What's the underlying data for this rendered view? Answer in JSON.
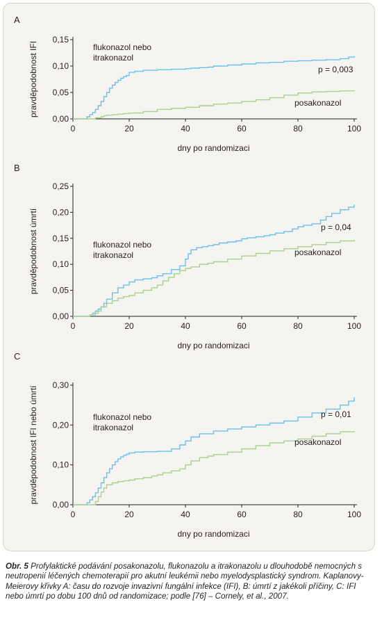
{
  "colors": {
    "fluconazole": "#67c1ef",
    "posaconazole": "#a5d28c",
    "axis": "#231f20",
    "panel_bg": "#f6f4f0"
  },
  "chart_data": [
    {
      "type": "line",
      "panel": "A",
      "xlabel": "dny po randomizaci",
      "ylabel": "pravděpodobnost IFI",
      "xlim": [
        0,
        100
      ],
      "ylim": [
        0,
        0.15
      ],
      "xticks": [
        "0",
        "20",
        "40",
        "60",
        "80",
        "100"
      ],
      "yticks": [
        "0,00",
        "0,05",
        "0,10",
        "0,15"
      ],
      "annotation": "p = 0,003",
      "series": [
        {
          "name": "flukonazol nebo itrakonazol",
          "label_lines": [
            "flukonazol nebo",
            "itrakonazol"
          ],
          "color_key": "fluconazole",
          "x": [
            0,
            4,
            5,
            6,
            7,
            8,
            9,
            10,
            11,
            12,
            13,
            14,
            15,
            16,
            17,
            18,
            19,
            20,
            22,
            25,
            30,
            35,
            40,
            42,
            45,
            48,
            50,
            55,
            60,
            65,
            70,
            75,
            80,
            85,
            90,
            95,
            98,
            100
          ],
          "y": [
            0,
            0,
            0.004,
            0.008,
            0.012,
            0.018,
            0.025,
            0.033,
            0.042,
            0.05,
            0.058,
            0.064,
            0.069,
            0.073,
            0.077,
            0.08,
            0.082,
            0.088,
            0.09,
            0.092,
            0.093,
            0.094,
            0.095,
            0.096,
            0.097,
            0.098,
            0.1,
            0.102,
            0.104,
            0.106,
            0.107,
            0.109,
            0.11,
            0.111,
            0.112,
            0.114,
            0.117,
            0.119
          ]
        },
        {
          "name": "posakonazol",
          "label_lines": [
            "posakonazol"
          ],
          "color_key": "posaconazole",
          "x": [
            0,
            5,
            8,
            10,
            11,
            12,
            14,
            16,
            18,
            20,
            25,
            30,
            35,
            40,
            45,
            50,
            55,
            60,
            65,
            70,
            75,
            80,
            85,
            90,
            95,
            100
          ],
          "y": [
            0,
            0,
            0.002,
            0.004,
            0.006,
            0.007,
            0.008,
            0.009,
            0.01,
            0.011,
            0.014,
            0.018,
            0.02,
            0.022,
            0.025,
            0.028,
            0.03,
            0.033,
            0.036,
            0.04,
            0.045,
            0.049,
            0.051,
            0.052,
            0.053,
            0.054
          ]
        }
      ]
    },
    {
      "type": "line",
      "panel": "B",
      "xlabel": "dny po randomizaci",
      "ylabel": "pravděpodobnost úmrtí",
      "xlim": [
        0,
        100
      ],
      "ylim": [
        0,
        0.25
      ],
      "xticks": [
        "0",
        "20",
        "40",
        "60",
        "80",
        "100"
      ],
      "yticks": [
        "0,00",
        "0,05",
        "0,10",
        "0,15",
        "0,20",
        "0,25"
      ],
      "annotation": "p = 0,04",
      "series": [
        {
          "name": "flukonazol nebo itrakonazol",
          "label_lines": [
            "flukonazol nebo",
            "itrakonazol"
          ],
          "color_key": "fluconazole",
          "x": [
            0,
            5,
            6,
            7,
            8,
            9,
            10,
            11,
            12,
            14,
            16,
            18,
            20,
            22,
            25,
            28,
            30,
            32,
            35,
            38,
            40,
            41,
            42,
            44,
            46,
            48,
            50,
            52,
            55,
            58,
            60,
            62,
            65,
            68,
            70,
            72,
            75,
            78,
            80,
            82,
            85,
            88,
            90,
            92,
            95,
            98,
            100
          ],
          "y": [
            0,
            0,
            0.003,
            0.006,
            0.01,
            0.014,
            0.018,
            0.025,
            0.033,
            0.045,
            0.055,
            0.06,
            0.066,
            0.07,
            0.072,
            0.074,
            0.078,
            0.082,
            0.09,
            0.097,
            0.11,
            0.12,
            0.128,
            0.132,
            0.134,
            0.136,
            0.138,
            0.141,
            0.143,
            0.145,
            0.149,
            0.151,
            0.153,
            0.155,
            0.157,
            0.16,
            0.163,
            0.168,
            0.172,
            0.175,
            0.178,
            0.185,
            0.192,
            0.198,
            0.205,
            0.21,
            0.215
          ]
        },
        {
          "name": "posakonazol",
          "label_lines": [
            "posakonazol"
          ],
          "color_key": "posaconazole",
          "x": [
            0,
            4,
            6,
            8,
            9,
            10,
            12,
            14,
            16,
            18,
            20,
            22,
            25,
            28,
            30,
            32,
            34,
            36,
            38,
            40,
            42,
            45,
            48,
            50,
            55,
            60,
            65,
            70,
            75,
            80,
            85,
            90,
            95,
            100
          ],
          "y": [
            0,
            0,
            0.003,
            0.006,
            0.01,
            0.018,
            0.025,
            0.03,
            0.035,
            0.038,
            0.04,
            0.045,
            0.05,
            0.055,
            0.06,
            0.068,
            0.075,
            0.082,
            0.088,
            0.092,
            0.095,
            0.1,
            0.102,
            0.105,
            0.11,
            0.116,
            0.121,
            0.126,
            0.13,
            0.134,
            0.138,
            0.142,
            0.145,
            0.147
          ]
        }
      ]
    },
    {
      "type": "line",
      "panel": "C",
      "xlabel": "dny po randomizaci",
      "ylabel": "pravděpodobnost IFI nebo úmrtí",
      "xlim": [
        0,
        100
      ],
      "ylim": [
        0,
        0.3
      ],
      "xticks": [
        "0",
        "20",
        "40",
        "60",
        "80",
        "100"
      ],
      "yticks": [
        "0,00",
        "0,10",
        "0,20",
        "0,30"
      ],
      "annotation": "p = 0,01",
      "series": [
        {
          "name": "flukonazol nebo itrakonazol",
          "label_lines": [
            "flukonazol nebo",
            "itrakonazol"
          ],
          "color_key": "fluconazole",
          "x": [
            0,
            4,
            5,
            6,
            7,
            8,
            9,
            10,
            11,
            12,
            13,
            14,
            15,
            16,
            17,
            18,
            19,
            20,
            22,
            25,
            30,
            35,
            38,
            40,
            42,
            45,
            50,
            55,
            60,
            65,
            70,
            75,
            80,
            85,
            90,
            95,
            98,
            100
          ],
          "y": [
            0,
            0,
            0.005,
            0.012,
            0.02,
            0.03,
            0.042,
            0.055,
            0.068,
            0.08,
            0.09,
            0.1,
            0.108,
            0.115,
            0.12,
            0.124,
            0.127,
            0.13,
            0.132,
            0.133,
            0.134,
            0.14,
            0.15,
            0.16,
            0.17,
            0.178,
            0.185,
            0.19,
            0.195,
            0.2,
            0.205,
            0.21,
            0.22,
            0.23,
            0.24,
            0.25,
            0.26,
            0.27
          ]
        },
        {
          "name": "posakonazol",
          "label_lines": [
            "posakonazol"
          ],
          "color_key": "posaconazole",
          "x": [
            0,
            7,
            8,
            9,
            10,
            11,
            12,
            14,
            16,
            18,
            20,
            22,
            25,
            28,
            30,
            32,
            35,
            38,
            40,
            42,
            45,
            48,
            50,
            55,
            60,
            65,
            70,
            75,
            80,
            85,
            90,
            95,
            100
          ],
          "y": [
            0,
            0,
            0.008,
            0.02,
            0.032,
            0.042,
            0.05,
            0.055,
            0.058,
            0.06,
            0.062,
            0.065,
            0.068,
            0.072,
            0.075,
            0.08,
            0.085,
            0.09,
            0.1,
            0.11,
            0.118,
            0.122,
            0.126,
            0.132,
            0.14,
            0.148,
            0.155,
            0.16,
            0.165,
            0.172,
            0.178,
            0.183,
            0.185
          ]
        }
      ]
    }
  ],
  "caption": {
    "label": "Obr. 5",
    "text": "Profylaktické podávání posakonazolu, flukonazolu a itrakonazolu u dlouhodobě nemocných s neutropenií léčených chemoterapií pro akutní leukémii nebo myelodysplastický syndrom. Kaplanovy-Meierovy křivky A: času do rozvoje invazivní fungální infekce (IFI), B: úmrtí z jakékoli příčiny, C: IFI nebo úmrtí po dobu 100 dnů od randomizace; podle [76] – Cornely, et al., 2007."
  }
}
